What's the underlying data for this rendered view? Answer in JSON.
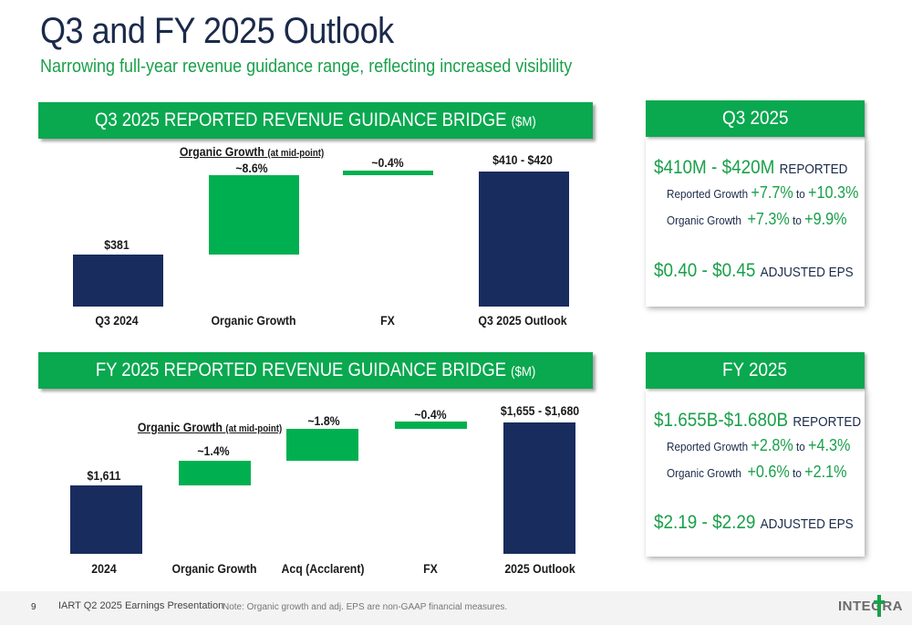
{
  "title": "Q3 and FY 2025 Outlook",
  "subtitle": "Narrowing full-year revenue guidance range, reflecting increased visibility",
  "q3_bridge": {
    "banner": "Q3 2025 REPORTED REVENUE GUIDANCE BRIDGE",
    "unit": "($M)",
    "organic_header": "Organic Growth",
    "organic_sub": "(at mid-point)",
    "bar_labels": [
      "$381",
      "~8.6%",
      "~0.4%",
      "$410 - $420"
    ],
    "categories": [
      "Q3 2024",
      "Organic Growth",
      "FX",
      "Q3 2025 Outlook"
    ]
  },
  "fy_bridge": {
    "banner": "FY 2025 REPORTED REVENUE GUIDANCE BRIDGE",
    "unit": "($M)",
    "organic_header": "Organic Growth",
    "organic_sub": "(at mid-point)",
    "bar_labels": [
      "$1,611",
      "~1.4%",
      "~1.8%",
      "~0.4%",
      "$1,655 - $1,680"
    ],
    "categories": [
      "2024",
      "Organic Growth",
      "Acq (Acclarent)",
      "FX",
      "2025 Outlook"
    ]
  },
  "q3_panel": {
    "header": "Q3 2025",
    "revenue": "$410M - $420M",
    "revenue_tag": "REPORTED",
    "reported_label": "Reported Growth",
    "reported_low": "+7.7%",
    "reported_high": "+10.3%",
    "organic_label": "Organic Growth",
    "organic_low": "+7.3%",
    "organic_high": "+9.9%",
    "to": "to",
    "eps": "$0.40 - $0.45",
    "eps_tag": "ADJUSTED EPS"
  },
  "fy_panel": {
    "header": "FY 2025",
    "revenue": "$1.655B-$1.680B",
    "revenue_tag": "REPORTED",
    "reported_label": "Reported Growth",
    "reported_low": "+2.8%",
    "reported_high": "+4.3%",
    "organic_label": "Organic Growth",
    "organic_low": "+0.6%",
    "organic_high": "+2.1%",
    "to": "to",
    "eps": "$2.19 - $2.29",
    "eps_tag": "ADJUSTED EPS"
  },
  "footer": {
    "page": "9",
    "presentation": "IART Q2 2025 Earnings Presentation",
    "note": "Note: Organic growth and adj. EPS are non-GAAP financial measures.",
    "logo": "INTEGRA"
  },
  "colors": {
    "navy": "#192c5e",
    "green": "#00b050",
    "accent_text": "#1aa04a"
  }
}
